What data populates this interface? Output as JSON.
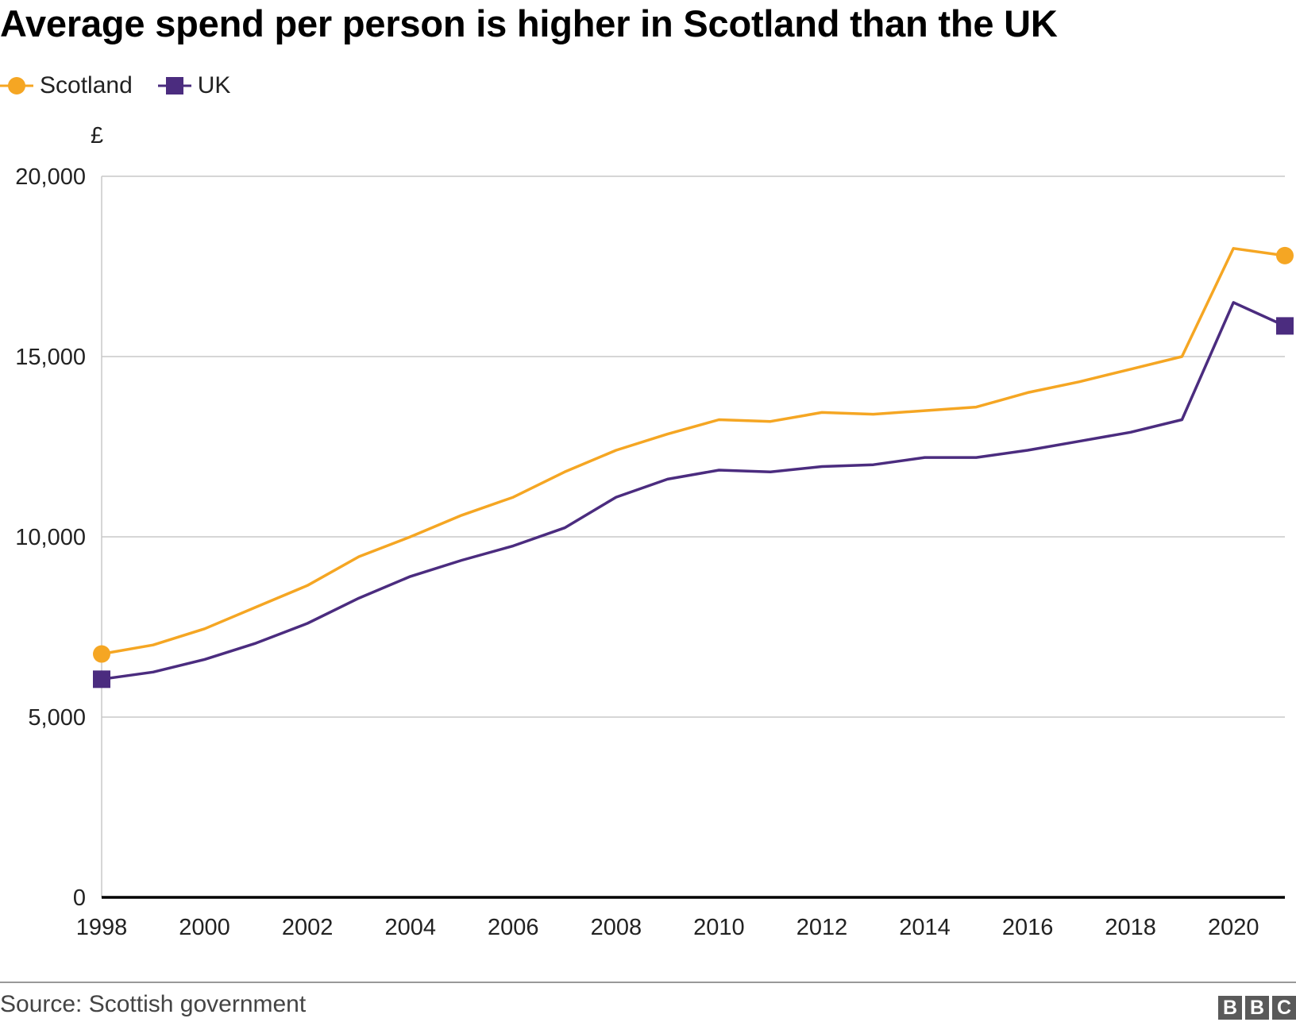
{
  "chart_data": {
    "type": "line",
    "title": "Average spend per person is higher in Scotland than the UK",
    "ylabel": "£",
    "xlabel": "",
    "ylim": [
      0,
      20000
    ],
    "yticks": [
      0,
      5000,
      10000,
      15000,
      20000
    ],
    "ytick_labels": [
      "0",
      "5,000",
      "10,000",
      "15,000",
      "20,000"
    ],
    "xticks": [
      1998,
      2000,
      2002,
      2004,
      2006,
      2008,
      2010,
      2012,
      2014,
      2016,
      2018,
      2020
    ],
    "xtick_labels": [
      "1998",
      "2000",
      "2002",
      "2004",
      "2006",
      "2008",
      "2010",
      "2012",
      "2014",
      "2016",
      "2018",
      "2020"
    ],
    "xlim": [
      1998,
      2021
    ],
    "x": [
      1998,
      1999,
      2000,
      2001,
      2002,
      2003,
      2004,
      2005,
      2006,
      2007,
      2008,
      2009,
      2010,
      2011,
      2012,
      2013,
      2014,
      2015,
      2016,
      2017,
      2018,
      2019,
      2020,
      2021
    ],
    "series": [
      {
        "name": "Scotland",
        "color": "#f5a623",
        "marker": "circle",
        "values": [
          6750,
          7000,
          7450,
          8050,
          8650,
          9450,
          10000,
          10600,
          11100,
          11800,
          12400,
          12850,
          13250,
          13200,
          13450,
          13400,
          13500,
          13600,
          14000,
          14300,
          14650,
          15000,
          18000,
          17800
        ]
      },
      {
        "name": "UK",
        "color": "#4b2c7f",
        "marker": "square",
        "values": [
          6050,
          6250,
          6600,
          7050,
          7600,
          8300,
          8900,
          9350,
          9750,
          10250,
          11100,
          11600,
          11850,
          11800,
          11950,
          12000,
          12200,
          12200,
          12400,
          12650,
          12900,
          13250,
          16500,
          15850
        ]
      }
    ],
    "legend": "top-left",
    "grid": true,
    "source": "Source: Scottish government",
    "logo": [
      "B",
      "B",
      "C"
    ]
  }
}
